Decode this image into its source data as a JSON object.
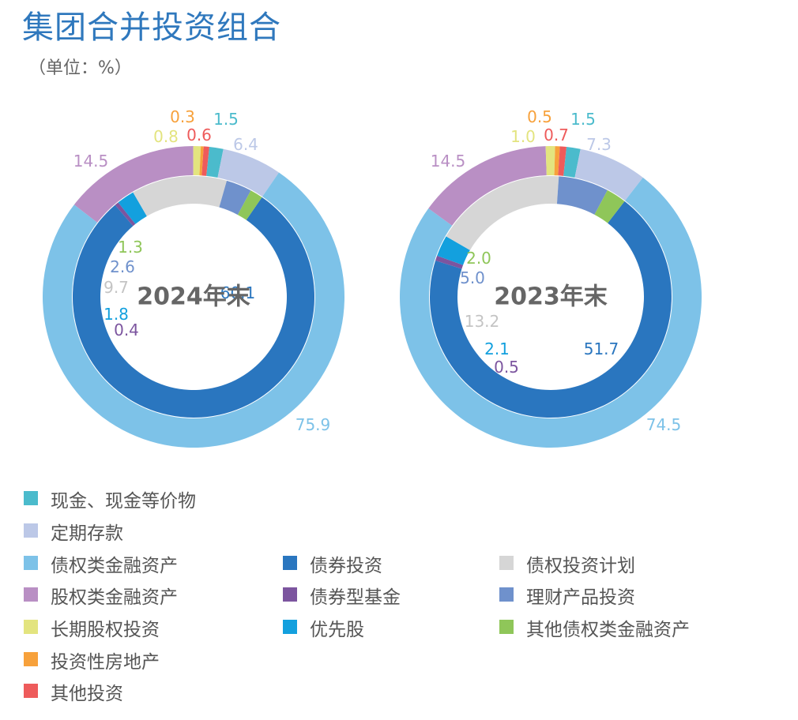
{
  "page": {
    "title": "集团合并投资组合",
    "unit": "（单位：%）"
  },
  "colors": {
    "cash": "#4bbbcc",
    "deposit": "#bcc8e7",
    "debt": "#7dc2e8",
    "equity": "#b98fc4",
    "ltequity": "#e3e47f",
    "property": "#f7a13b",
    "other": "#ee5b5b",
    "bond": "#2a76bf",
    "bondfund": "#7c559f",
    "pref": "#13a0de",
    "debtplan": "#d6d6d6",
    "wealth": "#6f91cc",
    "otherdebt": "#8fc659"
  },
  "chart_data": [
    {
      "type": "donut",
      "center_label": "2024年末",
      "outer": [
        {
          "key": "cash",
          "value": 1.5,
          "label": "1.5"
        },
        {
          "key": "deposit",
          "value": 6.4,
          "label": "6.4"
        },
        {
          "key": "debt",
          "value": 75.9,
          "label": "75.9"
        },
        {
          "key": "equity",
          "value": 14.5,
          "label": "14.5"
        },
        {
          "key": "ltequity",
          "value": 0.8,
          "label": "0.8"
        },
        {
          "key": "property",
          "value": 0.3,
          "label": "0.3"
        },
        {
          "key": "other",
          "value": 0.6,
          "label": "0.6"
        }
      ],
      "inner": [
        {
          "key": "bond",
          "value": 60.1,
          "label": "60.1"
        },
        {
          "key": "bondfund",
          "value": 0.4,
          "label": "0.4"
        },
        {
          "key": "pref",
          "value": 1.8,
          "label": "1.8"
        },
        {
          "key": "debtplan",
          "value": 9.7,
          "label": "9.7"
        },
        {
          "key": "wealth",
          "value": 2.6,
          "label": "2.6"
        },
        {
          "key": "otherdebt",
          "value": 1.3,
          "label": "1.3"
        }
      ]
    },
    {
      "type": "donut",
      "center_label": "2023年末",
      "outer": [
        {
          "key": "cash",
          "value": 1.5,
          "label": "1.5"
        },
        {
          "key": "deposit",
          "value": 7.3,
          "label": "7.3"
        },
        {
          "key": "debt",
          "value": 74.5,
          "label": "74.5"
        },
        {
          "key": "equity",
          "value": 14.5,
          "label": "14.5"
        },
        {
          "key": "ltequity",
          "value": 1.0,
          "label": "1.0"
        },
        {
          "key": "property",
          "value": 0.5,
          "label": "0.5"
        },
        {
          "key": "other",
          "value": 0.7,
          "label": "0.7"
        }
      ],
      "inner": [
        {
          "key": "bond",
          "value": 51.7,
          "label": "51.7"
        },
        {
          "key": "bondfund",
          "value": 0.5,
          "label": "0.5"
        },
        {
          "key": "pref",
          "value": 2.1,
          "label": "2.1"
        },
        {
          "key": "debtplan",
          "value": 13.2,
          "label": "13.2"
        },
        {
          "key": "wealth",
          "value": 5.0,
          "label": "5.0"
        },
        {
          "key": "otherdebt",
          "value": 2.0,
          "label": "2.0"
        }
      ]
    }
  ],
  "legend": [
    {
      "key": "cash",
      "label": "现金、现金等价物"
    },
    {
      "key": "deposit",
      "label": "定期存款"
    },
    {
      "key": "debt",
      "label": "债权类金融资产"
    },
    {
      "key": "equity",
      "label": "股权类金融资产"
    },
    {
      "key": "ltequity",
      "label": "长期股权投资"
    },
    {
      "key": "property",
      "label": "投资性房地产"
    },
    {
      "key": "other",
      "label": "其他投资"
    },
    {
      "key": "bond",
      "label": "债券投资"
    },
    {
      "key": "bondfund",
      "label": "债券型基金"
    },
    {
      "key": "pref",
      "label": "优先股"
    },
    {
      "key": "debtplan",
      "label": "债权投资计划"
    },
    {
      "key": "wealth",
      "label": "理财产品投资"
    },
    {
      "key": "otherdebt",
      "label": "其他债权类金融资产"
    }
  ]
}
